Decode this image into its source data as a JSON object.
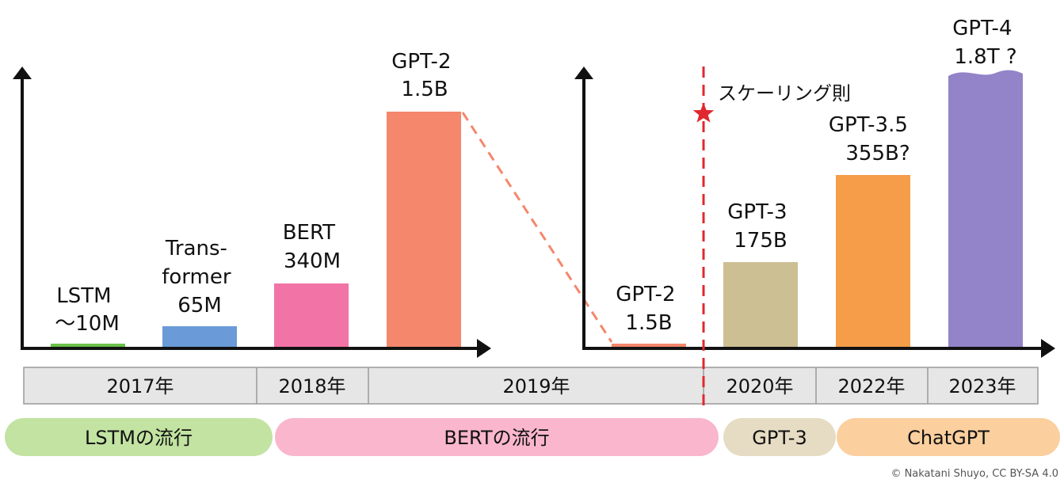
{
  "chart_data": [
    {
      "type": "bar",
      "bars": [
        {
          "label_lines": [
            "LSTM",
            "〜10M"
          ],
          "color": "#6cc04a"
        },
        {
          "label_lines": [
            "Trans-",
            "former",
            "65M"
          ],
          "color": "#6a9bd8"
        },
        {
          "label_lines": [
            "BERT",
            "340M"
          ],
          "color": "#f274a6"
        },
        {
          "label_lines": [
            "GPT-2",
            "1.5B"
          ],
          "color": "#f4876c"
        }
      ]
    },
    {
      "type": "bar",
      "bars": [
        {
          "label_lines": [
            "GPT-2",
            "1.5B"
          ],
          "color": "#f4876c"
        },
        {
          "label_lines": [
            "GPT-3",
            "175B"
          ],
          "color": "#cbbf93"
        },
        {
          "label_lines": [
            "GPT-3.5",
            "355B?"
          ],
          "color": "#f59d49"
        },
        {
          "label_lines": [
            "GPT-4",
            "1.8T ?"
          ],
          "color": "#9383c8"
        }
      ]
    }
  ],
  "annotation": {
    "text": "スケーリング則",
    "marker_color": "#e0282e"
  },
  "years": [
    "2017年",
    "2018年",
    "2019年",
    "2020年",
    "2022年",
    "2023年"
  ],
  "eras": [
    {
      "label": "LSTMの流行",
      "color": "#c2e3a1"
    },
    {
      "label": "BERTの流行",
      "color": "#f9b6cd"
    },
    {
      "label": "GPT-3",
      "color": "#e6dcc3"
    },
    {
      "label": "ChatGPT",
      "color": "#fbcf9e"
    }
  ],
  "colors": {
    "axis": "#111111",
    "year_band": "#e6e6e6",
    "year_border": "#9a9a9a",
    "connector": "#f4876c"
  },
  "copyright": "© Nakatani Shuyo, CC BY-SA 4.0"
}
